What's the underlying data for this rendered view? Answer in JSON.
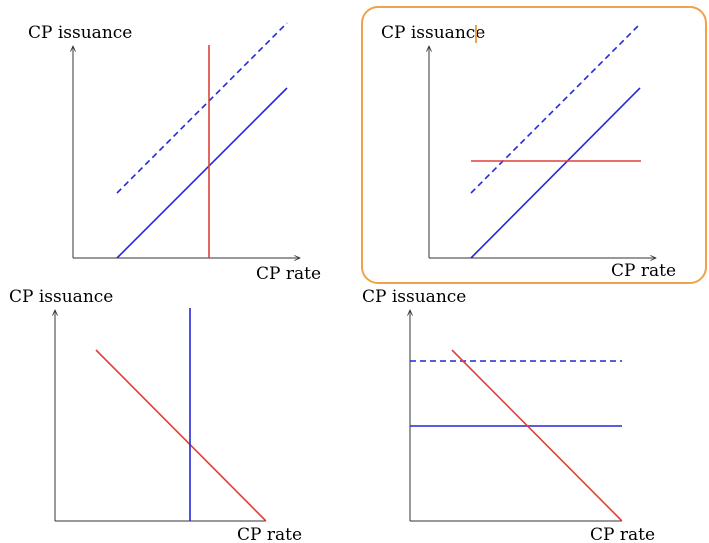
{
  "panels": [
    {
      "y_axis_label": "CP issuance",
      "x_axis_label": "CP rate",
      "selected": false
    },
    {
      "y_axis_label": "CP issuance",
      "x_axis_label": "CP rate",
      "selected": true
    },
    {
      "y_axis_label": "CP issuance",
      "x_axis_label": "CP rate",
      "selected": false
    },
    {
      "y_axis_label": "CP issuance",
      "x_axis_label": "CP rate",
      "selected": false
    }
  ],
  "colors": {
    "demand_line": "#e0413a",
    "supply_line": "#2727d9",
    "axis": "#333333",
    "selection_border": "#f0a24a",
    "text_cursor": "#f0a24a"
  }
}
